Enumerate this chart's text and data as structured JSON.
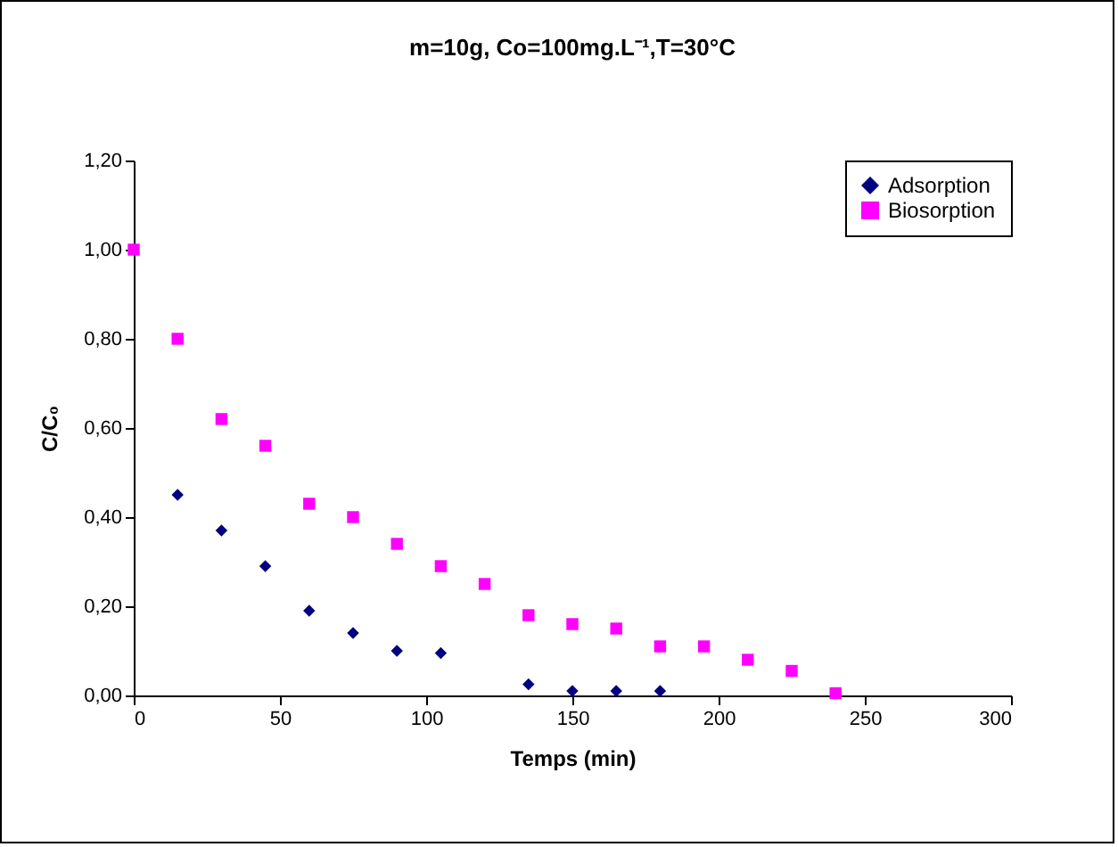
{
  "chart_data": {
    "type": "scatter",
    "title": "m=10g, Co=100mg.L⁻¹,T=30°C",
    "xlabel": "Temps (min)",
    "ylabel": "C/C₀",
    "x": [
      0,
      15,
      30,
      45,
      60,
      75,
      90,
      105,
      120,
      135,
      150,
      165,
      180,
      195,
      210,
      225,
      240
    ],
    "series": [
      {
        "name": "Adsorption",
        "color": "#000080",
        "marker": "diamond",
        "values": [
          null,
          0.45,
          0.37,
          0.29,
          0.19,
          0.14,
          0.1,
          0.095,
          null,
          0.025,
          0.01,
          0.01,
          0.01,
          null,
          null,
          null,
          null
        ]
      },
      {
        "name": "Biosorption",
        "color": "#ff00ff",
        "marker": "square",
        "values": [
          1.0,
          0.8,
          0.62,
          0.56,
          0.43,
          0.4,
          0.34,
          0.29,
          0.25,
          0.18,
          0.16,
          0.15,
          0.11,
          0.11,
          0.08,
          0.055,
          0.005
        ]
      }
    ],
    "xlim": [
      0,
      300
    ],
    "xticks": [
      0,
      50,
      100,
      150,
      200,
      250,
      300
    ],
    "ylim": [
      0,
      1.2
    ],
    "yticks": [
      {
        "value": 0,
        "label": "0,00"
      },
      {
        "value": 0.2,
        "label": "0,20"
      },
      {
        "value": 0.4,
        "label": "0,40"
      },
      {
        "value": 0.6,
        "label": "0,60"
      },
      {
        "value": 0.8,
        "label": "0,80"
      },
      {
        "value": 1.0,
        "label": "1,00"
      },
      {
        "value": 1.2,
        "label": "1,20"
      }
    ],
    "grid": false,
    "legend": "top right"
  }
}
